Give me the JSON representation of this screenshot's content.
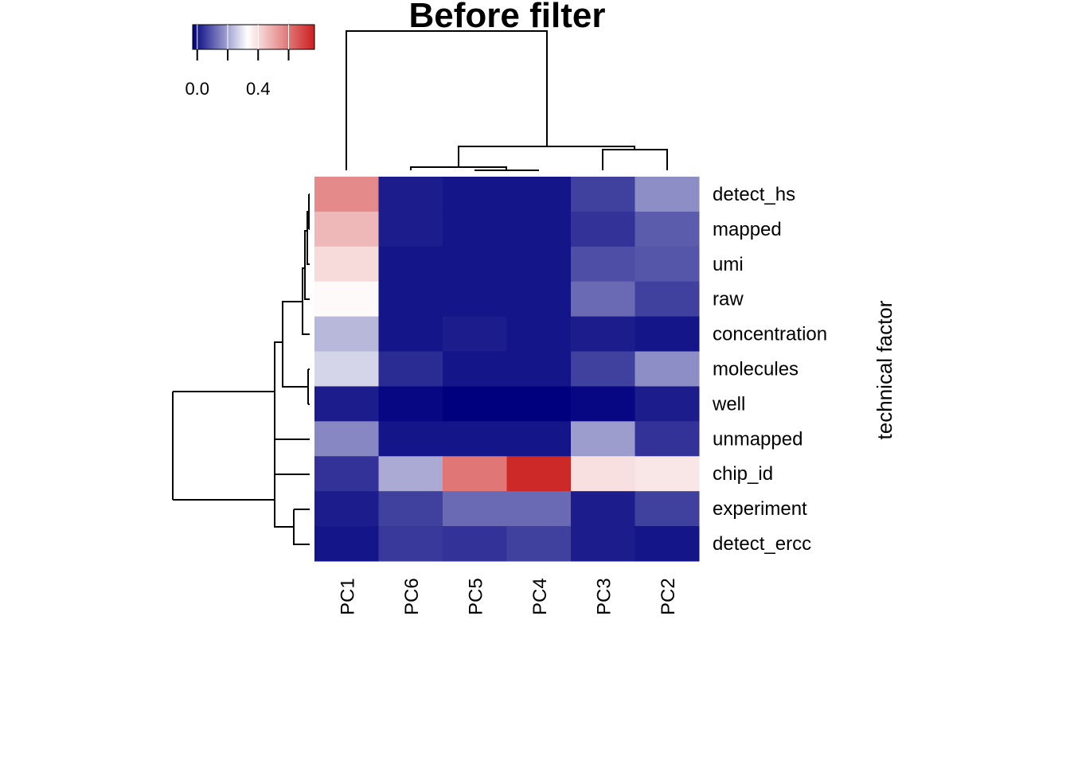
{
  "chart_data": {
    "type": "heatmap",
    "title": "Before filter",
    "y_label": "technical factor",
    "columns": [
      "PC1",
      "PC6",
      "PC5",
      "PC4",
      "PC3",
      "PC2"
    ],
    "rows": [
      "detect_hs",
      "mapped",
      "umi",
      "raw",
      "concentration",
      "molecules",
      "well",
      "unmapped",
      "chip_id",
      "experiment",
      "detect_ercc"
    ],
    "values": [
      [
        0.56,
        0.01,
        0.0,
        0.0,
        0.06,
        0.17
      ],
      [
        0.47,
        0.01,
        0.0,
        0.0,
        0.04,
        0.1
      ],
      [
        0.4,
        0.0,
        0.0,
        0.0,
        0.08,
        0.09
      ],
      [
        0.34,
        0.0,
        0.0,
        0.0,
        0.12,
        0.06
      ],
      [
        0.23,
        0.0,
        0.01,
        0.0,
        0.01,
        0.0
      ],
      [
        0.27,
        0.03,
        0.0,
        0.0,
        0.06,
        0.17
      ],
      [
        0.01,
        -0.02,
        -0.03,
        -0.03,
        -0.02,
        0.01
      ],
      [
        0.16,
        0.0,
        0.0,
        0.0,
        0.19,
        0.04
      ],
      [
        0.04,
        0.21,
        0.6,
        0.75,
        0.39,
        0.38
      ],
      [
        0.01,
        0.06,
        0.12,
        0.12,
        0.01,
        0.06
      ],
      [
        0.0,
        0.05,
        0.04,
        0.06,
        0.01,
        0.0
      ]
    ],
    "color_stops": [
      {
        "value": -0.03,
        "color": "#00007f"
      },
      {
        "value": 0.33,
        "color": "#ffffff"
      },
      {
        "value": 0.77,
        "color": "#cc1f1f"
      }
    ],
    "clim": [
      -0.03,
      0.77
    ],
    "cticks": [
      {
        "value": 0,
        "label": "0.0"
      },
      {
        "value": 0.4,
        "label": "0.4"
      }
    ],
    "cminor_ticks": [
      0.2,
      0.6
    ]
  }
}
